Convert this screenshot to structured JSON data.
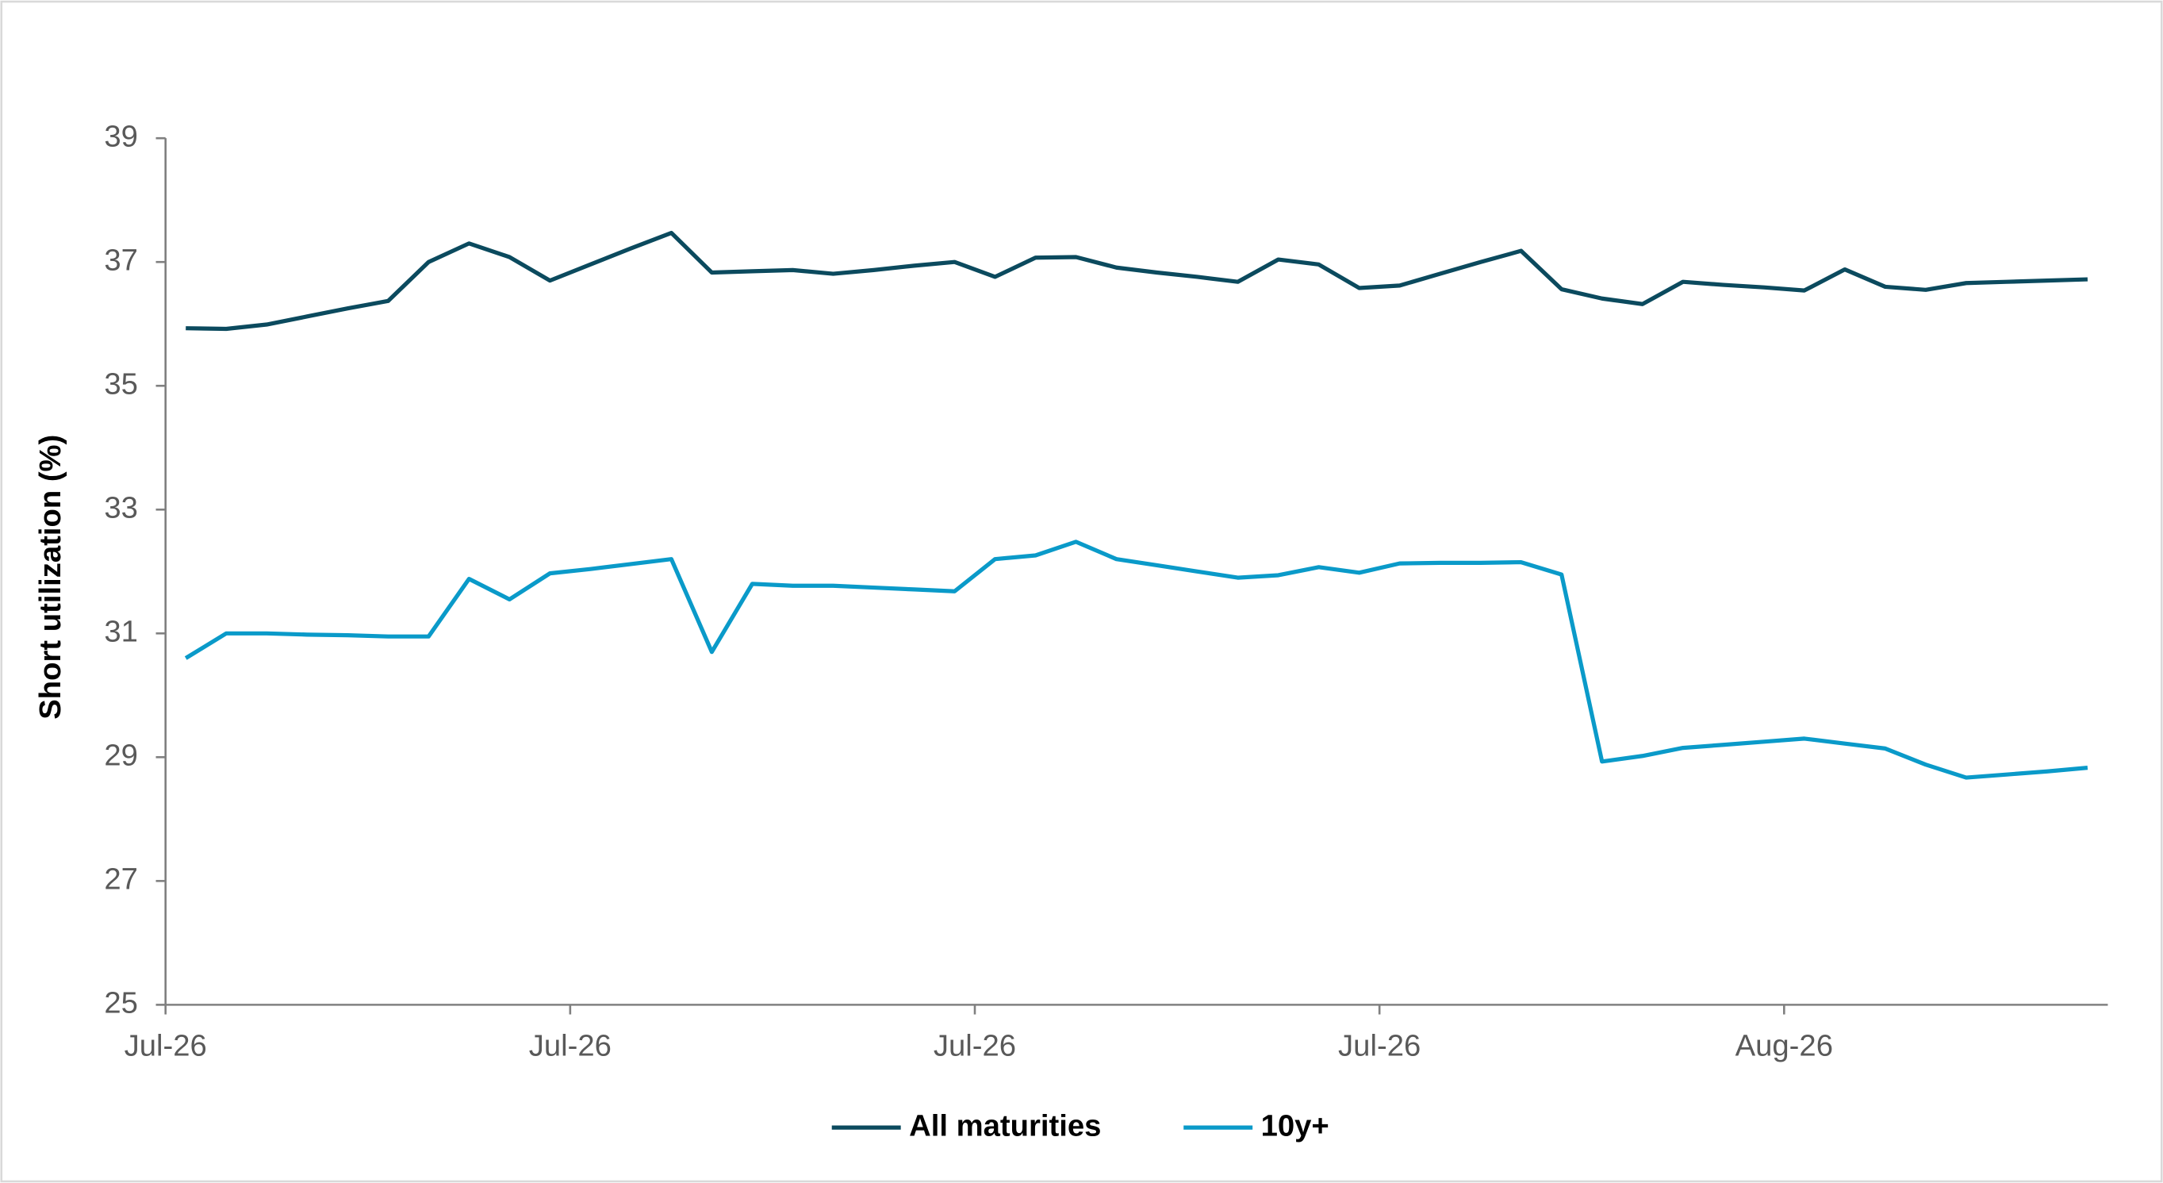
{
  "chart_data": {
    "type": "line",
    "y_label": "Short utilization (%)",
    "categories": [
      "Jul-26",
      null,
      null,
      null,
      null,
      null,
      null,
      null,
      null,
      null,
      "Jul-26",
      null,
      null,
      null,
      null,
      null,
      null,
      null,
      null,
      null,
      "Jul-26",
      null,
      null,
      null,
      null,
      null,
      null,
      null,
      null,
      null,
      "Jul-26",
      null,
      null,
      null,
      null,
      null,
      null,
      null,
      null,
      null,
      "Aug-26",
      null,
      null,
      null,
      null,
      null,
      null,
      null
    ],
    "series": [
      {
        "name": "All maturities",
        "color": "#0b4a5e",
        "values": [
          35.93,
          35.92,
          35.99,
          36.12,
          36.25,
          36.37,
          37.0,
          37.3,
          37.08,
          36.7,
          36.96,
          37.22,
          37.47,
          36.83,
          36.85,
          36.87,
          36.81,
          36.87,
          36.94,
          37.0,
          36.76,
          37.07,
          37.08,
          36.91,
          36.83,
          36.76,
          36.68,
          37.04,
          36.96,
          36.58,
          36.62,
          36.81,
          37.0,
          37.18,
          36.56,
          36.41,
          36.32,
          36.68,
          36.63,
          36.59,
          36.54,
          36.88,
          36.6,
          36.55,
          36.66,
          36.68,
          36.7,
          36.72
        ]
      },
      {
        "name": "10y+",
        "color": "#0a9ac9",
        "values": [
          30.6,
          31.0,
          31.0,
          30.98,
          30.97,
          30.95,
          30.95,
          31.88,
          31.55,
          31.97,
          32.04,
          32.12,
          32.2,
          30.7,
          31.8,
          31.77,
          31.77,
          31.74,
          31.71,
          31.68,
          32.2,
          32.26,
          32.48,
          32.2,
          32.1,
          32.0,
          31.9,
          31.94,
          32.07,
          31.98,
          32.13,
          32.14,
          32.14,
          32.15,
          31.95,
          28.93,
          29.02,
          29.15,
          29.2,
          29.25,
          29.3,
          29.22,
          29.14,
          28.88,
          28.67,
          28.72,
          28.77,
          28.83
        ]
      }
    ],
    "ylim": [
      25,
      39
    ],
    "yticks": [
      25,
      27,
      29,
      31,
      33,
      35,
      37,
      39
    ],
    "grid": false,
    "legend": "bottom"
  }
}
